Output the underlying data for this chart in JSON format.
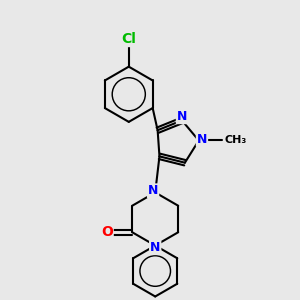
{
  "bg_color": "#e8e8e8",
  "bond_color": "#000000",
  "N_color": "#0000ff",
  "O_color": "#ff0000",
  "Cl_color": "#00bb00",
  "bond_width": 1.5,
  "font_size": 9,
  "fig_size": [
    3.0,
    3.0
  ],
  "dpi": 100,
  "xlim": [
    -0.5,
    3.0
  ],
  "ylim": [
    0.2,
    5.8
  ]
}
